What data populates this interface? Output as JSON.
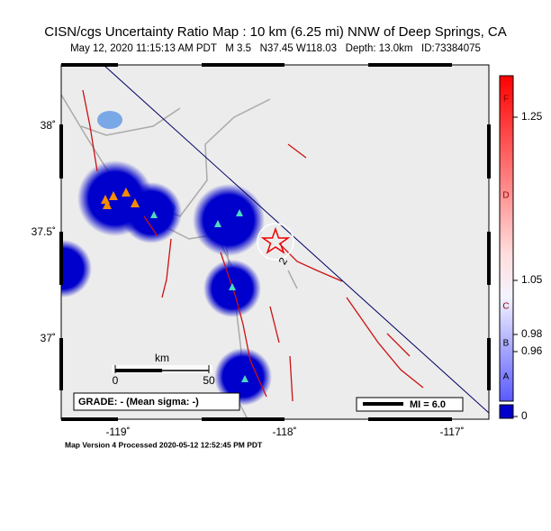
{
  "header": {
    "title": "CISN/cgs Uncertainty Ratio Map : 10 km (6.25 mi) NNW of Deep Springs, CA",
    "subtitle": "May 12, 2020 11:15:13 AM PDT   M 3.5   N37.45 W118.03   Depth: 13.0km   ID:73384075"
  },
  "map": {
    "lat_labels": [
      "38˚",
      "37.5˚",
      "37˚"
    ],
    "lon_labels": [
      "-119˚",
      "-118˚",
      "-117˚"
    ],
    "scale": {
      "unit": "km",
      "start": "0",
      "end": "50"
    },
    "grade": "GRADE: - (Mean sigma: -)",
    "mi_legend": "MI = 6.0",
    "contour_label": "2"
  },
  "colorbar": {
    "ticks": [
      "1.25",
      "1.05",
      "0.98",
      "0.96",
      "0"
    ],
    "classes": [
      "F",
      "D",
      "C",
      "B",
      "A"
    ]
  },
  "footer": "Map Version 4 Processed 2020-05-12 12:52:45 PM PDT"
}
